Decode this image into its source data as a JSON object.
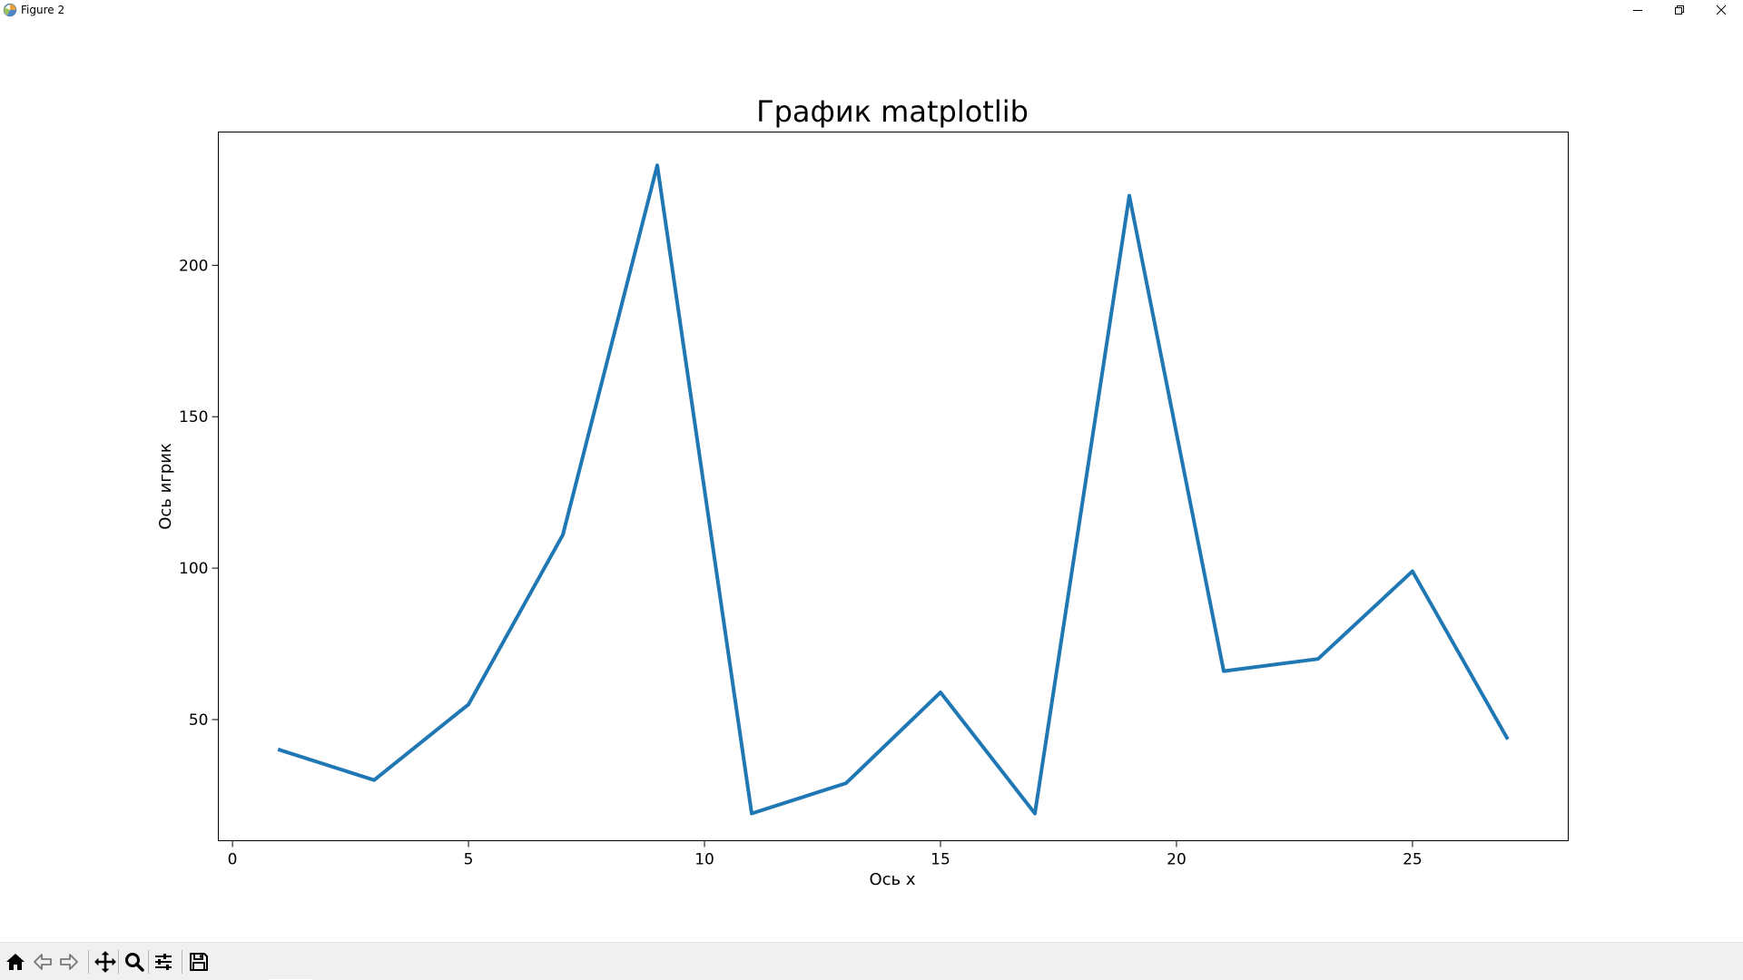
{
  "window": {
    "title": "Figure 2",
    "icons": [
      "app-icon",
      "minimize-icon",
      "restore-icon",
      "close-icon"
    ]
  },
  "toolbar": {
    "buttons": [
      {
        "name": "home",
        "icon": "home-icon"
      },
      {
        "name": "back",
        "icon": "arrow-left-icon"
      },
      {
        "name": "forward",
        "icon": "arrow-right-icon"
      },
      {
        "name": "pan",
        "icon": "move-icon"
      },
      {
        "name": "zoom",
        "icon": "magnifier-icon"
      },
      {
        "name": "configure-subplots",
        "icon": "sliders-icon"
      },
      {
        "name": "save",
        "icon": "floppy-disk-icon"
      }
    ]
  },
  "chart_data": {
    "type": "line",
    "title": "График matplotlib",
    "xlabel": "Ось x",
    "ylabel": "Ось игрик",
    "xlim": [
      -0.3,
      28.3
    ],
    "ylim": [
      10,
      244
    ],
    "xticks": [
      0,
      5,
      10,
      15,
      20,
      25
    ],
    "yticks": [
      50,
      100,
      150,
      200
    ],
    "grid": false,
    "line_color": "#1f77b4",
    "series": [
      {
        "x": [
          1,
          3,
          5,
          7,
          9,
          11,
          13,
          15,
          17,
          19,
          21,
          23,
          25,
          27
        ],
        "y": [
          40,
          30,
          55,
          111,
          233,
          19,
          29,
          59,
          19,
          223,
          66,
          70,
          99,
          44
        ]
      }
    ]
  }
}
